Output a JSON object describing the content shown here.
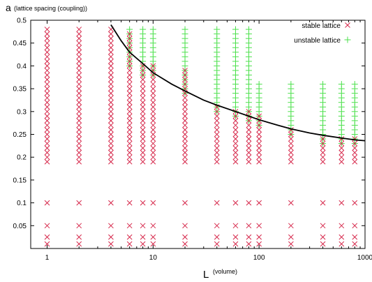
{
  "chart_data": {
    "type": "scatter",
    "ylabel": "a",
    "ylabel_note": "(lattice spacing (coupling))",
    "xlabel": "L",
    "xlabel_note": "(volume)",
    "x_scale": "log",
    "xlim": [
      0.7,
      1000
    ],
    "ylim": [
      0,
      0.5
    ],
    "x_ticks": [
      1,
      10,
      100,
      1000
    ],
    "x_tick_labels": [
      "1",
      "10",
      "100",
      "1000"
    ],
    "y_ticks": [
      0.05,
      0.1,
      0.15,
      0.2,
      0.25,
      0.3,
      0.35,
      0.4,
      0.45,
      0.5
    ],
    "y_tick_labels": [
      "0.05",
      "0.1",
      "0.15",
      "0.2",
      "0.25",
      "0.3",
      "0.35",
      "0.4",
      "0.45",
      "0.5"
    ],
    "grid": false,
    "legend_position": "top-right",
    "colors": {
      "stable": "#d6284b",
      "unstable": "#4be04b",
      "curve": "#000000"
    },
    "series": [
      {
        "name": "stable lattice",
        "marker": "x",
        "columns": [
          {
            "x": 1,
            "from": 0.19,
            "to": 0.48
          },
          {
            "x": 2,
            "from": 0.19,
            "to": 0.48
          },
          {
            "x": 4,
            "from": 0.19,
            "to": 0.48
          },
          {
            "x": 6,
            "from": 0.19,
            "to": 0.47
          },
          {
            "x": 8,
            "from": 0.19,
            "to": 0.4
          },
          {
            "x": 10,
            "from": 0.19,
            "to": 0.4
          },
          {
            "x": 20,
            "from": 0.19,
            "to": 0.39
          },
          {
            "x": 40,
            "from": 0.19,
            "to": 0.31
          },
          {
            "x": 60,
            "from": 0.19,
            "to": 0.3
          },
          {
            "x": 80,
            "from": 0.19,
            "to": 0.3
          },
          {
            "x": 100,
            "from": 0.19,
            "to": 0.29
          },
          {
            "x": 200,
            "from": 0.19,
            "to": 0.26
          },
          {
            "x": 400,
            "from": 0.19,
            "to": 0.24
          },
          {
            "x": 600,
            "from": 0.19,
            "to": 0.24
          },
          {
            "x": 800,
            "from": 0.19,
            "to": 0.24
          }
        ],
        "extra_y": [
          0.1,
          0.05,
          0.025,
          0.01
        ],
        "extra_x": [
          1,
          2,
          4,
          6,
          8,
          10,
          20,
          40,
          60,
          80,
          100,
          200,
          400,
          600,
          800
        ]
      },
      {
        "name": "unstable lattice",
        "marker": "+",
        "columns": [
          {
            "x": 6,
            "from": 0.4,
            "to": 0.48
          },
          {
            "x": 8,
            "from": 0.38,
            "to": 0.48
          },
          {
            "x": 10,
            "from": 0.38,
            "to": 0.48
          },
          {
            "x": 20,
            "from": 0.34,
            "to": 0.48
          },
          {
            "x": 40,
            "from": 0.3,
            "to": 0.48
          },
          {
            "x": 60,
            "from": 0.29,
            "to": 0.48
          },
          {
            "x": 80,
            "from": 0.28,
            "to": 0.48
          },
          {
            "x": 100,
            "from": 0.27,
            "to": 0.36
          },
          {
            "x": 200,
            "from": 0.25,
            "to": 0.36
          },
          {
            "x": 400,
            "from": 0.23,
            "to": 0.36
          },
          {
            "x": 600,
            "from": 0.23,
            "to": 0.36
          },
          {
            "x": 800,
            "from": 0.23,
            "to": 0.36
          }
        ]
      }
    ],
    "point_spacing": 0.01,
    "boundary_curve": {
      "x": [
        4,
        5,
        6,
        8,
        10,
        15,
        20,
        30,
        40,
        60,
        80,
        100,
        150,
        200,
        300,
        400,
        600,
        800,
        1000
      ],
      "y": [
        0.49,
        0.455,
        0.43,
        0.405,
        0.385,
        0.36,
        0.345,
        0.325,
        0.314,
        0.3,
        0.29,
        0.282,
        0.27,
        0.262,
        0.253,
        0.248,
        0.242,
        0.238,
        0.236
      ]
    }
  }
}
